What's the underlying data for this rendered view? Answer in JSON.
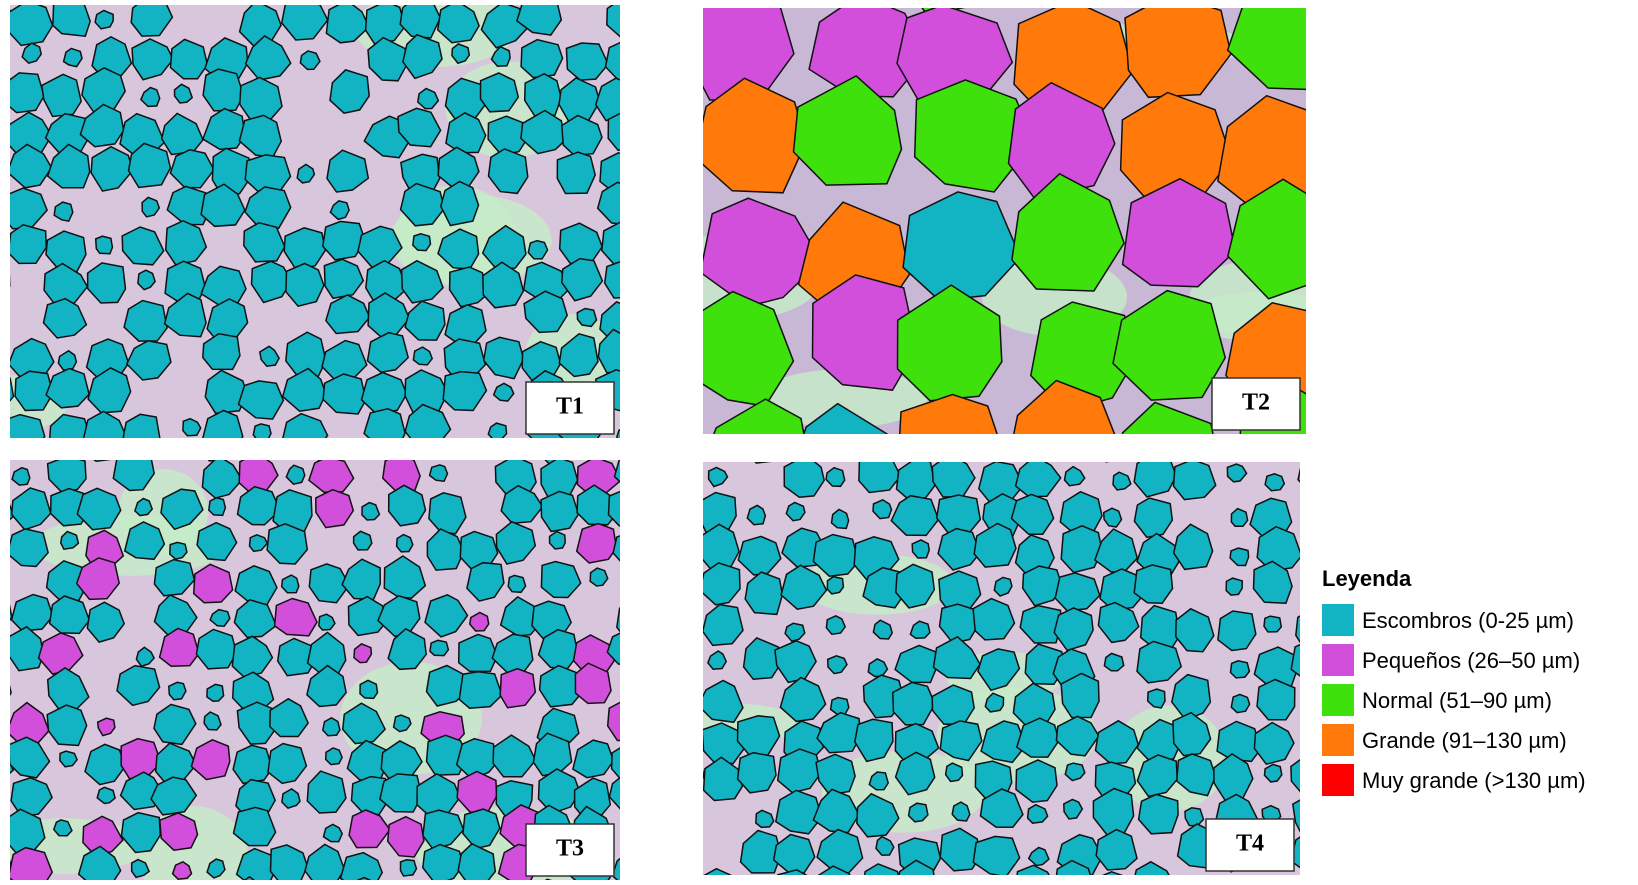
{
  "panels": [
    {
      "label": "T1"
    },
    {
      "label": "T2"
    },
    {
      "label": "T3"
    },
    {
      "label": "T4"
    }
  ],
  "legend": {
    "title": "Leyenda",
    "items": [
      {
        "label": "Escombros (0-25 µm)",
        "color": "#12b3c3"
      },
      {
        "label": "Pequeños (26–50 µm)",
        "color": "#d24fdc"
      },
      {
        "label": "Normal (51–90 µm)",
        "color": "#3ee10c"
      },
      {
        "label": "Grande (91–130 µm)",
        "color": "#ff7a0a"
      },
      {
        "label": "Muy grande (>130 µm)",
        "color": "#ff0000"
      }
    ]
  }
}
